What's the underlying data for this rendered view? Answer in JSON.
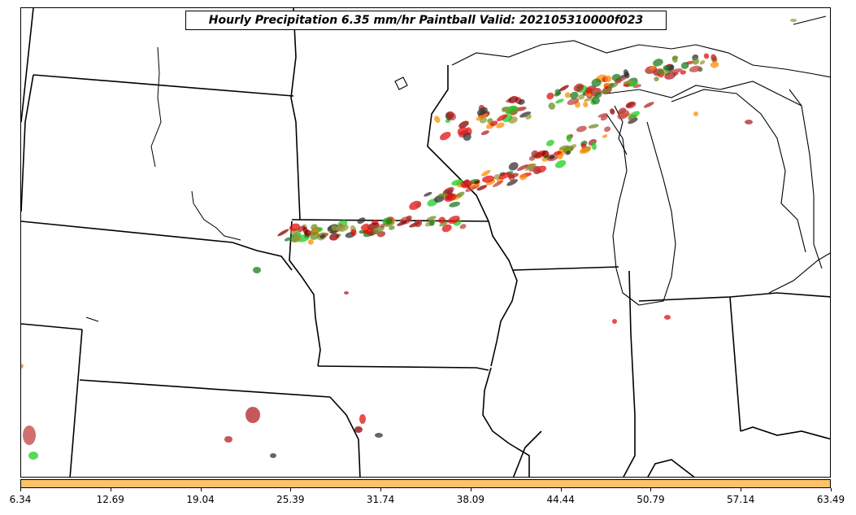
{
  "title": "Hourly Precipitation 6.35 mm/hr Paintball Valid: 202105310000f023",
  "colorbar": {
    "color": "#ffc266",
    "ticks": [
      "6.34",
      "12.69",
      "19.04",
      "25.39",
      "31.74",
      "38.09",
      "44.44",
      "50.79",
      "57.14",
      "63.49"
    ]
  },
  "member_colors": [
    "#e01010",
    "#ff8c00",
    "#8b0000",
    "#6b8e23",
    "#1e7b1e",
    "#22cc22",
    "#333333",
    "#b22222",
    "#9a9a3a",
    "#c04040"
  ]
}
